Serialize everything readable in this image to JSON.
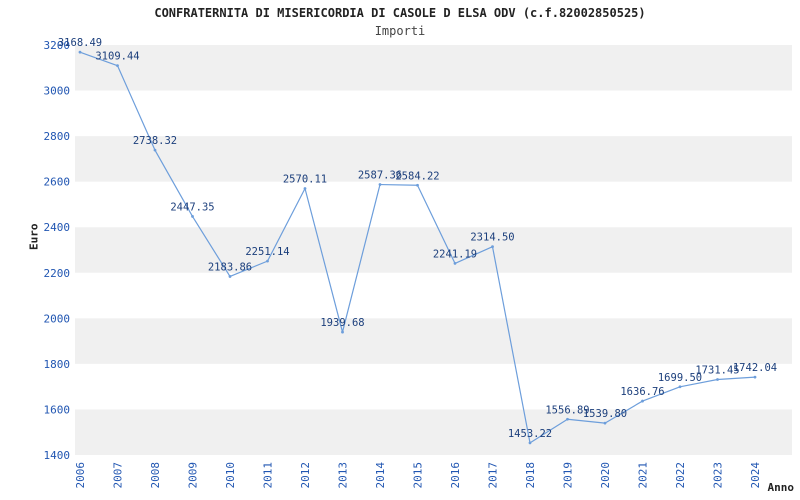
{
  "chart_data": {
    "type": "line",
    "title": "CONFRATERNITA DI MISERICORDIA DI CASOLE D ELSA ODV (c.f.82002850525)",
    "subtitle": "Importi",
    "xlabel": "Anno",
    "ylabel": "Euro",
    "categories": [
      "2006",
      "2007",
      "2008",
      "2009",
      "2010",
      "2011",
      "2012",
      "2013",
      "2014",
      "2015",
      "2016",
      "2017",
      "2018",
      "2019",
      "2020",
      "2021",
      "2022",
      "2023",
      "2024"
    ],
    "series": [
      {
        "name": "Importi",
        "values": [
          3168.49,
          3109.44,
          2738.32,
          2447.35,
          2183.86,
          2251.14,
          2570.11,
          1939.68,
          2587.36,
          2584.22,
          2241.19,
          2314.5,
          1453.22,
          1556.89,
          1539.8,
          1636.76,
          1699.5,
          1731.45,
          1742.04
        ]
      }
    ],
    "ylim": [
      1400,
      3200
    ],
    "ytick_step": 200,
    "ytick_labels": [
      "1400",
      "1600",
      "1800",
      "2000",
      "2200",
      "2400",
      "2600",
      "2800",
      "3000",
      "3200"
    ],
    "grid": "alternating-horizontal-bands",
    "legend": "none",
    "data_labels_visible": true,
    "colors": {
      "line": "#6d9edb",
      "data_label": "#1c3f7c",
      "tick_label": "#2156b2",
      "band": "#f0f0f0",
      "background": "#ffffff",
      "title": "#222222",
      "axis_label": "#222222"
    }
  }
}
